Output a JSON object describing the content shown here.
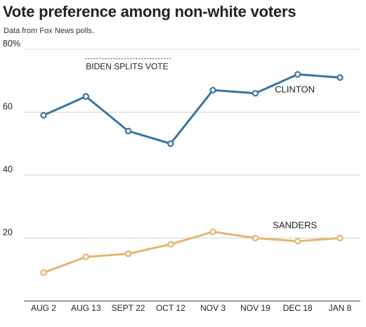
{
  "chart_data": {
    "type": "line",
    "title": "Vote preference among non-white voters",
    "subtitle": "Data from Fox News polls.",
    "categories": [
      "AUG 2",
      "AUG 13",
      "SEPT 22",
      "OCT 12",
      "NOV 3",
      "NOV 19",
      "DEC 18",
      "JAN 8"
    ],
    "ylim": [
      0,
      80
    ],
    "yticks": [
      {
        "value": 80,
        "label": "80%"
      },
      {
        "value": 60,
        "label": "60"
      },
      {
        "value": 40,
        "label": "40"
      },
      {
        "value": 20,
        "label": "20"
      }
    ],
    "grid": true,
    "series": [
      {
        "name": "CLINTON",
        "color": "#3a759f",
        "values": [
          59,
          65,
          54,
          50,
          67,
          66,
          72,
          71
        ]
      },
      {
        "name": "SANDERS",
        "color": "#e3b66f",
        "values": [
          9,
          14,
          15,
          18,
          22,
          20,
          19,
          20
        ]
      }
    ],
    "annotations": [
      {
        "text": "BIDEN SPLITS VOTE",
        "x_from": 1,
        "x_to": 3,
        "y": 77
      }
    ],
    "colors": {
      "grid": "#d4d4d4",
      "axis": "#333333",
      "text": "#222222"
    }
  }
}
